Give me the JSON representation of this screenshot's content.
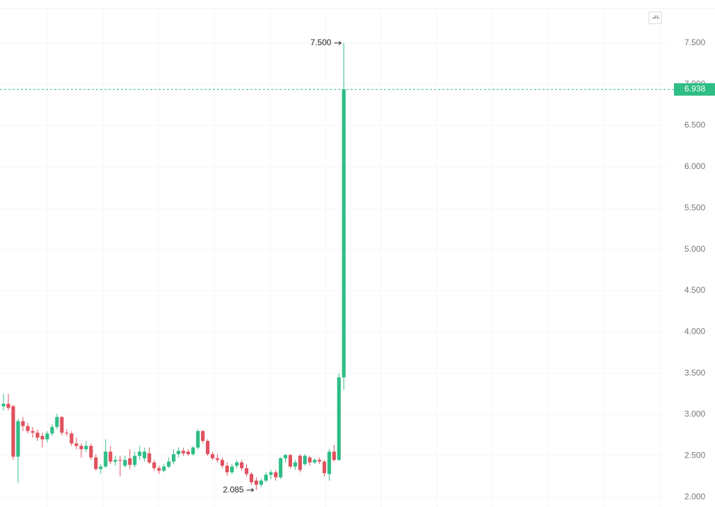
{
  "chart_data": {
    "type": "candlestick",
    "up_color": "#2ebd85",
    "down_color": "#e0515e",
    "grid": true,
    "ylim": [
      1.88,
      7.92
    ],
    "yticks": [
      {
        "value": 2.0,
        "label": "2.000"
      },
      {
        "value": 2.5,
        "label": "2.500"
      },
      {
        "value": 3.0,
        "label": "3.000"
      },
      {
        "value": 3.5,
        "label": "3.500"
      },
      {
        "value": 4.0,
        "label": "4.000"
      },
      {
        "value": 4.5,
        "label": "4.500"
      },
      {
        "value": 5.0,
        "label": "5.000"
      },
      {
        "value": 5.5,
        "label": "5.500"
      },
      {
        "value": 6.0,
        "label": "6.000"
      },
      {
        "value": 6.5,
        "label": "6.500"
      },
      {
        "value": 7.0,
        "label": "7.000"
      },
      {
        "value": 7.5,
        "label": "7.500"
      }
    ],
    "open": [
      3.1,
      3.13,
      3.1,
      2.49,
      2.92,
      2.86,
      2.8,
      2.78,
      2.74,
      2.7,
      2.77,
      2.85,
      2.97,
      2.78,
      2.77,
      2.65,
      2.62,
      2.58,
      2.62,
      2.48,
      2.34,
      2.37,
      2.55,
      2.43,
      2.45,
      2.38,
      2.47,
      2.39,
      2.5,
      2.47,
      2.53,
      2.42,
      2.35,
      2.32,
      2.37,
      2.43,
      2.52,
      2.56,
      2.55,
      2.52,
      2.6,
      2.8,
      2.68,
      2.52,
      2.47,
      2.45,
      2.38,
      2.3,
      2.38,
      2.42,
      2.35,
      2.28,
      2.2,
      2.15,
      2.2,
      2.27,
      2.3,
      2.24,
      2.47,
      2.51,
      2.37,
      2.5,
      2.4,
      2.48,
      2.42,
      2.45,
      2.43,
      2.28,
      2.55,
      2.45,
      3.45
    ],
    "high": [
      3.25,
      3.25,
      3.12,
      2.95,
      2.97,
      2.9,
      2.85,
      2.82,
      2.78,
      2.8,
      2.88,
      3.01,
      2.98,
      2.82,
      2.8,
      2.72,
      2.65,
      2.68,
      2.65,
      2.52,
      2.4,
      2.7,
      2.62,
      2.5,
      2.5,
      2.5,
      2.58,
      2.55,
      2.62,
      2.6,
      2.6,
      2.45,
      2.38,
      2.4,
      2.48,
      2.58,
      2.6,
      2.6,
      2.58,
      2.62,
      2.82,
      2.81,
      2.7,
      2.55,
      2.52,
      2.48,
      2.42,
      2.4,
      2.45,
      2.45,
      2.4,
      2.3,
      2.24,
      2.22,
      2.3,
      2.33,
      2.33,
      2.48,
      2.52,
      2.52,
      2.45,
      2.52,
      2.52,
      2.5,
      2.47,
      2.48,
      2.45,
      2.58,
      2.63,
      3.5,
      7.5
    ],
    "low": [
      3.05,
      3.05,
      2.45,
      2.17,
      2.8,
      2.77,
      2.72,
      2.68,
      2.6,
      2.66,
      2.74,
      2.82,
      2.75,
      2.74,
      2.62,
      2.58,
      2.48,
      2.55,
      2.45,
      2.32,
      2.28,
      2.35,
      2.4,
      2.38,
      2.25,
      2.36,
      2.34,
      2.36,
      2.45,
      2.43,
      2.4,
      2.32,
      2.28,
      2.3,
      2.35,
      2.4,
      2.48,
      2.5,
      2.5,
      2.5,
      2.58,
      2.65,
      2.5,
      2.45,
      2.42,
      2.35,
      2.26,
      2.28,
      2.35,
      2.32,
      2.25,
      2.15,
      2.085,
      2.12,
      2.18,
      2.22,
      2.2,
      2.22,
      2.42,
      2.35,
      2.33,
      2.3,
      2.38,
      2.38,
      2.4,
      2.4,
      2.25,
      2.2,
      2.43,
      2.44,
      3.3
    ],
    "close": [
      3.13,
      3.08,
      2.49,
      2.92,
      2.86,
      2.8,
      2.78,
      2.72,
      2.7,
      2.77,
      2.85,
      2.97,
      2.78,
      2.77,
      2.65,
      2.62,
      2.58,
      2.62,
      2.48,
      2.34,
      2.37,
      2.55,
      2.43,
      2.45,
      2.44,
      2.45,
      2.39,
      2.5,
      2.55,
      2.55,
      2.42,
      2.35,
      2.32,
      2.37,
      2.43,
      2.52,
      2.56,
      2.53,
      2.52,
      2.6,
      2.8,
      2.68,
      2.52,
      2.47,
      2.45,
      2.38,
      2.3,
      2.37,
      2.42,
      2.35,
      2.28,
      2.18,
      2.15,
      2.2,
      2.27,
      2.3,
      2.24,
      2.47,
      2.51,
      2.37,
      2.42,
      2.33,
      2.5,
      2.42,
      2.45,
      2.43,
      2.29,
      2.55,
      2.45,
      3.45,
      6.938
    ],
    "high_marker": {
      "value": 7.5,
      "label": "7.500"
    },
    "low_marker": {
      "value": 2.085,
      "label": "2.085"
    },
    "last_price": {
      "value": 6.938,
      "label": "6.938"
    }
  }
}
